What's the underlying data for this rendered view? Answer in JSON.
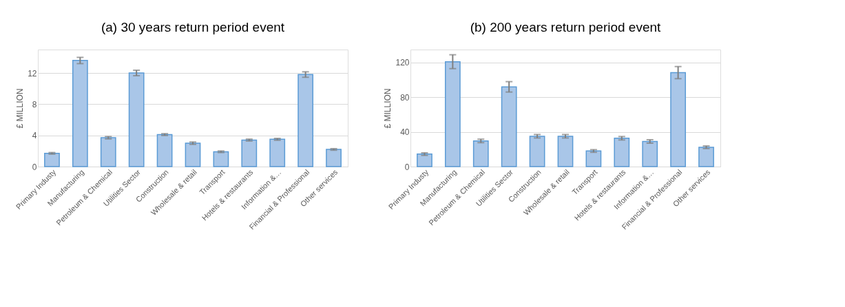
{
  "chart_data": [
    {
      "type": "bar",
      "title": "(a)   30 years return period event",
      "ylabel": "£ MILLION",
      "categories": [
        "Primary Industy",
        "Manufacturing",
        "Petroleum & Chemical",
        "Utilities Sector",
        "Construction",
        "Wholesale & retail",
        "Transport",
        "Hotels & restaurants",
        "Information &…",
        "Financial & Professional",
        "Other services"
      ],
      "series": [
        {
          "color": "#a9c6e8",
          "values": [
            1.7,
            13.6,
            3.7,
            12.0,
            4.1,
            3.0,
            1.9,
            3.4,
            3.5,
            11.8,
            2.2
          ],
          "errors": [
            0.1,
            0.4,
            0.15,
            0.35,
            0.12,
            0.15,
            0.1,
            0.12,
            0.12,
            0.35,
            0.1
          ]
        }
      ],
      "ylim": [
        0,
        15
      ],
      "yticks": [
        0,
        4,
        8,
        12
      ],
      "grid": "y"
    },
    {
      "type": "bar",
      "title": "(b)   200 years return period event",
      "ylabel": "£ MILLION",
      "categories": [
        "Primary Industy",
        "Manufacturing",
        "Petroleum & Chemical",
        "Utilities Sector",
        "Construction",
        "Wholesale & retail",
        "Transport",
        "Hotels & restaurants",
        "Information &…",
        "Financial & Professional",
        "Other services"
      ],
      "series": [
        {
          "color": "#a9c6e8",
          "values": [
            14.4,
            121,
            29.6,
            92,
            35,
            35,
            18,
            32.7,
            29,
            108.4,
            22.3
          ],
          "errors": [
            1.5,
            8,
            2,
            6,
            2,
            2,
            1.5,
            2,
            2,
            7,
            1.5
          ]
        }
      ],
      "ylim": [
        0,
        135
      ],
      "yticks": [
        0,
        40,
        80,
        120
      ],
      "grid": "y"
    }
  ]
}
